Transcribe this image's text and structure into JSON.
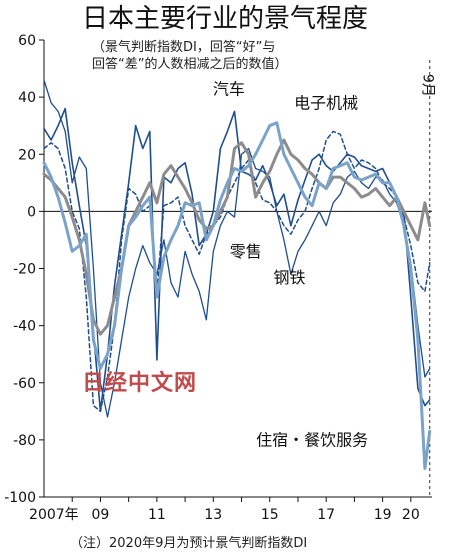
{
  "chart_data": {
    "type": "line",
    "title": "日本主要行业的景气程度",
    "subtitle_lines": [
      "（景气判断指数DI，回答“好”与",
      "回答“差”的人数相减之后的数值）"
    ],
    "ylim": [
      -100,
      60
    ],
    "yticks": [
      -100,
      -80,
      -60,
      -40,
      -20,
      0,
      20,
      40,
      60
    ],
    "xlim": [
      2007.0,
      2020.75
    ],
    "xtick_labels": [
      {
        "x": 2007.35,
        "label": "2007年"
      },
      {
        "x": 2009.0,
        "label": "09"
      },
      {
        "x": 2011.0,
        "label": "11"
      },
      {
        "x": 2013.0,
        "label": "13"
      },
      {
        "x": 2015.0,
        "label": "15"
      },
      {
        "x": 2017.0,
        "label": "17"
      },
      {
        "x": 2019.0,
        "label": "19"
      },
      {
        "x": 2020.0,
        "label": "20"
      }
    ],
    "september_marker": {
      "x": 2020.67,
      "label": "9月",
      "marker": "dashed-vertical-line"
    },
    "footnote": "（注）2020年9月为预计景气判断指数DI",
    "watermark": "日经中文网",
    "series": [
      {
        "name": "汽车",
        "color": "#1f4e8c",
        "width": 1.6,
        "dash": "",
        "x": [
          2007.0,
          2007.25,
          2007.5,
          2007.75,
          2008.0,
          2008.25,
          2008.5,
          2008.75,
          2009.0,
          2009.25,
          2009.5,
          2009.75,
          2010.0,
          2010.25,
          2010.5,
          2010.75,
          2011.0,
          2011.25,
          2011.5,
          2011.75,
          2012.0,
          2012.25,
          2012.5,
          2012.75,
          2013.0,
          2013.25,
          2013.5,
          2013.75,
          2014.0,
          2014.25,
          2014.5,
          2014.75,
          2015.0,
          2015.25,
          2015.5,
          2015.75,
          2016.0,
          2016.25,
          2016.5,
          2016.75,
          2017.0,
          2017.25,
          2017.5,
          2017.75,
          2018.0,
          2018.25,
          2018.5,
          2018.75,
          2019.0,
          2019.25,
          2019.5,
          2019.75,
          2020.0,
          2020.25,
          2020.5,
          2020.67
        ],
        "y": [
          29,
          25,
          30,
          36,
          17,
          2,
          -12,
          -42,
          -70,
          -50,
          -26,
          -8,
          10,
          30,
          22,
          28,
          -52,
          12,
          10,
          15,
          17,
          6,
          -12,
          -8,
          0,
          22,
          28,
          35,
          14,
          13,
          11,
          16,
          10,
          2,
          6,
          -5,
          4,
          11,
          18,
          20,
          16,
          14,
          17,
          20,
          19,
          16,
          15,
          14,
          15,
          10,
          5,
          0,
          -30,
          -62,
          -68,
          -66
        ]
      },
      {
        "name": "电子机械",
        "color": "#1f4e8c",
        "width": 1.5,
        "dash": "4,3",
        "x": [
          2007.0,
          2007.25,
          2007.5,
          2007.75,
          2008.0,
          2008.25,
          2008.5,
          2008.75,
          2009.0,
          2009.25,
          2009.5,
          2009.75,
          2010.0,
          2010.25,
          2010.5,
          2010.75,
          2011.0,
          2011.25,
          2011.5,
          2011.75,
          2012.0,
          2012.25,
          2012.5,
          2012.75,
          2013.0,
          2013.25,
          2013.5,
          2013.75,
          2014.0,
          2014.25,
          2014.5,
          2014.75,
          2015.0,
          2015.25,
          2015.5,
          2015.75,
          2016.0,
          2016.25,
          2016.5,
          2016.75,
          2017.0,
          2017.25,
          2017.5,
          2017.75,
          2018.0,
          2018.25,
          2018.5,
          2018.75,
          2019.0,
          2019.25,
          2019.5,
          2019.75,
          2020.0,
          2020.25,
          2020.5,
          2020.67
        ],
        "y": [
          22,
          24,
          22,
          15,
          0,
          -6,
          -30,
          -68,
          -70,
          -58,
          -40,
          -10,
          8,
          6,
          0,
          2,
          -28,
          2,
          3,
          5,
          -5,
          -10,
          -15,
          -8,
          -5,
          -2,
          5,
          10,
          15,
          18,
          10,
          4,
          3,
          0,
          -5,
          -8,
          -3,
          0,
          8,
          15,
          25,
          28,
          27,
          20,
          15,
          18,
          17,
          15,
          10,
          8,
          5,
          -2,
          -12,
          -25,
          -28,
          -18
        ]
      },
      {
        "name": "钢铁",
        "color": "#1f4e8c",
        "width": 1.3,
        "dash": "",
        "x": [
          2007.0,
          2007.25,
          2007.5,
          2007.75,
          2008.0,
          2008.25,
          2008.5,
          2008.75,
          2009.0,
          2009.25,
          2009.5,
          2009.75,
          2010.0,
          2010.25,
          2010.5,
          2010.75,
          2011.0,
          2011.25,
          2011.5,
          2011.75,
          2012.0,
          2012.25,
          2012.5,
          2012.75,
          2013.0,
          2013.25,
          2013.5,
          2013.75,
          2014.0,
          2014.25,
          2014.5,
          2014.75,
          2015.0,
          2015.25,
          2015.5,
          2015.75,
          2016.0,
          2016.25,
          2016.5,
          2016.75,
          2017.0,
          2017.25,
          2017.5,
          2017.75,
          2018.0,
          2018.25,
          2018.5,
          2018.75,
          2019.0,
          2019.25,
          2019.5,
          2019.75,
          2020.0,
          2020.25,
          2020.5,
          2020.67
        ],
        "y": [
          46,
          38,
          35,
          28,
          10,
          19,
          15,
          -20,
          -60,
          -72,
          -60,
          -45,
          -30,
          -20,
          -12,
          -18,
          -22,
          -10,
          -25,
          -30,
          -14,
          -22,
          -28,
          -38,
          -14,
          -5,
          0,
          -2,
          20,
          22,
          15,
          14,
          12,
          0,
          -10,
          -22,
          -14,
          -10,
          -5,
          0,
          -5,
          3,
          6,
          12,
          14,
          10,
          8,
          12,
          11,
          6,
          3,
          -5,
          -18,
          -40,
          -58,
          -55
        ]
      },
      {
        "name": "零售",
        "color": "#8c8c8c",
        "width": 3.0,
        "dash": "",
        "x": [
          2007.0,
          2007.25,
          2007.5,
          2007.75,
          2008.0,
          2008.25,
          2008.5,
          2008.75,
          2009.0,
          2009.25,
          2009.5,
          2009.75,
          2010.0,
          2010.25,
          2010.5,
          2010.75,
          2011.0,
          2011.25,
          2011.5,
          2011.75,
          2012.0,
          2012.25,
          2012.5,
          2012.75,
          2013.0,
          2013.25,
          2013.5,
          2013.75,
          2014.0,
          2014.25,
          2014.5,
          2014.75,
          2015.0,
          2015.25,
          2015.5,
          2015.75,
          2016.0,
          2016.25,
          2016.5,
          2016.75,
          2017.0,
          2017.25,
          2017.5,
          2017.75,
          2018.0,
          2018.25,
          2018.5,
          2018.75,
          2019.0,
          2019.25,
          2019.5,
          2019.75,
          2020.0,
          2020.25,
          2020.5,
          2020.67
        ],
        "y": [
          13,
          11,
          8,
          5,
          -2,
          -10,
          -22,
          -38,
          -43,
          -40,
          -30,
          -20,
          -5,
          0,
          5,
          10,
          3,
          13,
          16,
          12,
          8,
          3,
          -3,
          -6,
          -5,
          0,
          5,
          22,
          24,
          20,
          5,
          10,
          14,
          20,
          25,
          20,
          18,
          15,
          13,
          10,
          8,
          12,
          12,
          10,
          8,
          5,
          6,
          8,
          5,
          2,
          5,
          0,
          -5,
          -10,
          3,
          -5
        ]
      },
      {
        "name": "住宿·餐饮服务",
        "color": "#7ba3c9",
        "width": 3.0,
        "dash": "",
        "x": [
          2007.0,
          2007.25,
          2007.5,
          2007.75,
          2008.0,
          2008.25,
          2008.5,
          2008.75,
          2009.0,
          2009.25,
          2009.5,
          2009.75,
          2010.0,
          2010.25,
          2010.5,
          2010.75,
          2011.0,
          2011.25,
          2011.5,
          2011.75,
          2012.0,
          2012.25,
          2012.5,
          2012.75,
          2013.0,
          2013.25,
          2013.5,
          2013.75,
          2014.0,
          2014.25,
          2014.5,
          2014.75,
          2015.0,
          2015.25,
          2015.5,
          2015.75,
          2016.0,
          2016.25,
          2016.5,
          2016.75,
          2017.0,
          2017.25,
          2017.5,
          2017.75,
          2018.0,
          2018.25,
          2018.5,
          2018.75,
          2019.0,
          2019.25,
          2019.5,
          2019.75,
          2020.0,
          2020.25,
          2020.5,
          2020.67
        ],
        "y": [
          17,
          12,
          5,
          -4,
          -14,
          -12,
          -8,
          -45,
          -55,
          -50,
          -40,
          -20,
          -5,
          -2,
          2,
          5,
          -30,
          -16,
          -10,
          -5,
          3,
          2,
          3,
          -10,
          -5,
          4,
          10,
          15,
          14,
          16,
          20,
          25,
          30,
          31,
          20,
          15,
          10,
          5,
          2,
          10,
          8,
          15,
          16,
          17,
          12,
          11,
          12,
          13,
          10,
          10,
          5,
          -5,
          -20,
          -45,
          -90,
          -77
        ]
      }
    ],
    "labels": [
      {
        "series": "汽车",
        "text": "汽车",
        "x": 2013.55,
        "y": 41
      },
      {
        "series": "电子机械",
        "text": "电子机械",
        "x": 2017.0,
        "y": 36
      },
      {
        "series": "零售",
        "text": "零售",
        "x": 2014.15,
        "y": -16
      },
      {
        "series": "钢铁",
        "text": "钢铁",
        "x": 2015.7,
        "y": -25
      },
      {
        "series": "住宿·餐饮服务",
        "text": "住宿・餐饮服务",
        "x": 2016.5,
        "y": -82
      }
    ]
  }
}
